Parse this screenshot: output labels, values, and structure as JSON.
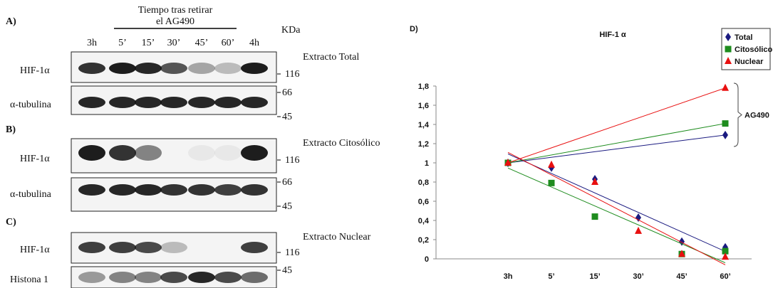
{
  "panels": {
    "a": "A)",
    "b": "B)",
    "c": "C)"
  },
  "time_header": [
    "Tiempo tras retirar",
    "el AG490"
  ],
  "kda": "KDa",
  "lanes": [
    "3h",
    "5’",
    "15’",
    "30’",
    "45’",
    "60’",
    "4h"
  ],
  "extracts": [
    "Extracto Total",
    "Extracto Citosólico",
    "Extracto Nuclear"
  ],
  "row_labels": [
    "HIF-1α",
    "α-tubulina",
    "HIF-1α",
    "α-tubulina",
    "HIF-1α",
    "Histona 1"
  ],
  "markers": [
    116,
    66,
    45,
    116,
    66,
    45,
    116,
    45
  ],
  "chart_data": {
    "type": "scatter",
    "panel": "D)",
    "title": "HIF-1 α",
    "categories": [
      "3h",
      "5’",
      "15’",
      "30’",
      "45’",
      "60’"
    ],
    "series": [
      {
        "name": "Total",
        "color": "#1a1a80",
        "marker": "diamond",
        "values": [
          1,
          0.95,
          0.83,
          0.43,
          0.18,
          0.12
        ],
        "ag490": 1.29
      },
      {
        "name": "Citosólico",
        "color": "#1e8c1e",
        "marker": "square",
        "values": [
          1,
          0.79,
          0.44,
          null,
          0.05,
          0.08
        ],
        "ag490": 1.41
      },
      {
        "name": "Nuclear",
        "color": "#e81010",
        "marker": "triangle",
        "values": [
          1,
          0.98,
          0.8,
          0.29,
          0.05,
          0.02
        ],
        "ag490": 1.78
      }
    ],
    "annotation": "AG490",
    "ylim": [
      0,
      1.8
    ],
    "yticks": [
      0,
      {
        "value": 0.2,
        "label": "0,2"
      },
      {
        "value": 0.4,
        "label": "0,4"
      },
      {
        "value": 0.6,
        "label": "0,6"
      },
      {
        "value": 0.8,
        "label": "0,8"
      },
      1,
      {
        "value": 1.2,
        "label": "1,2"
      },
      {
        "value": 1.4,
        "label": "1,4"
      },
      {
        "value": 1.6,
        "label": "1,6"
      },
      {
        "value": 1.8,
        "label": "1,8"
      }
    ],
    "legend": "top-right"
  }
}
